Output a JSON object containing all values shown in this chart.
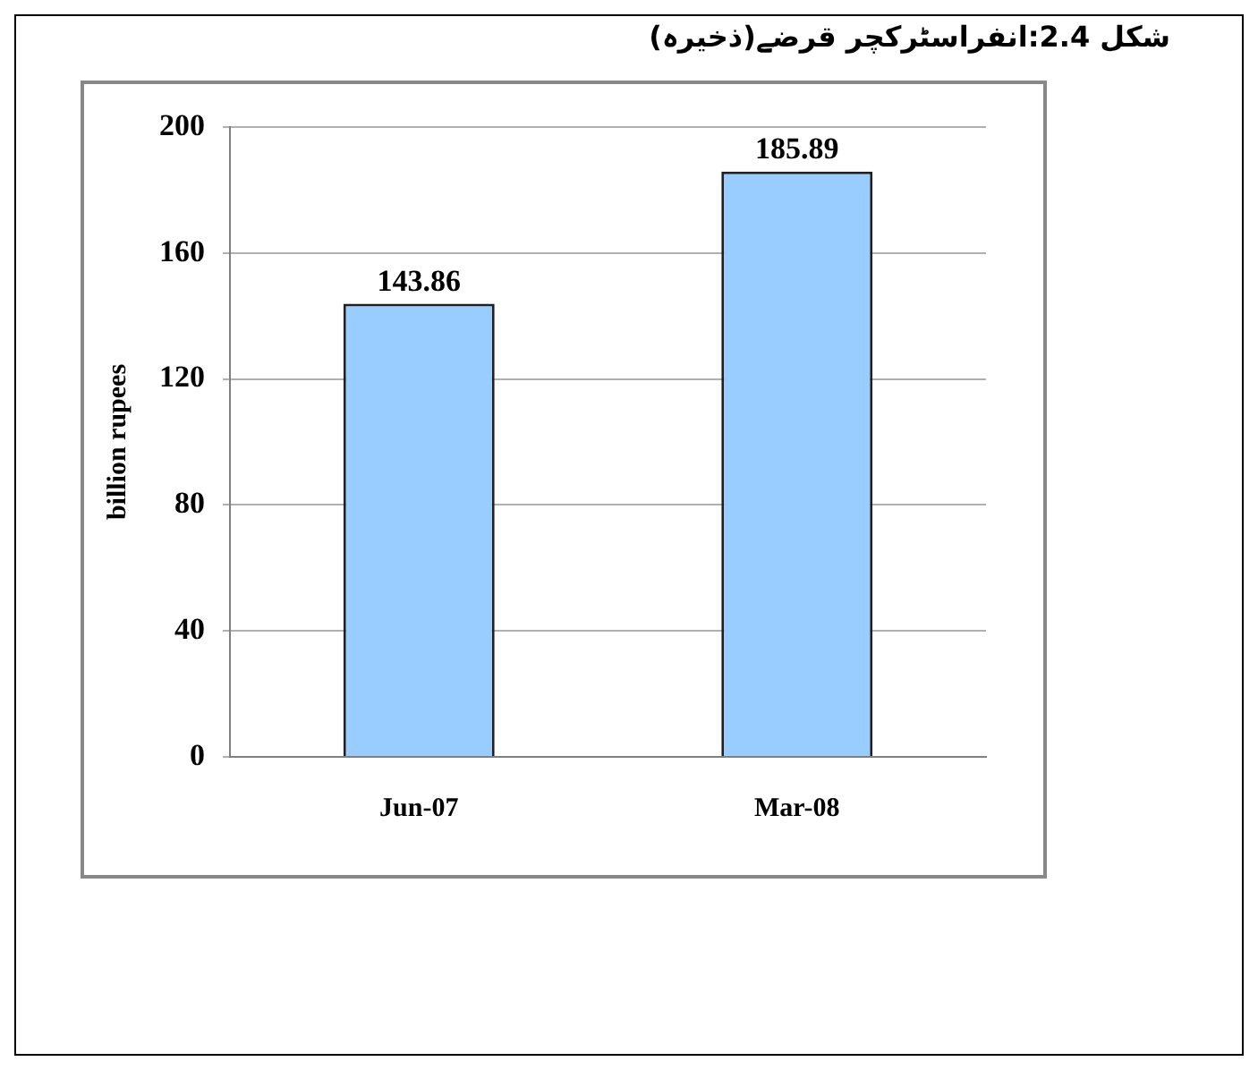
{
  "chart_data": {
    "type": "bar",
    "title": "شکل 2.4:انفراسٹرکچر قرضے(ذخیرہ)",
    "ylabel": "billion rupees",
    "categories": [
      "Jun-07",
      "Mar-08"
    ],
    "values": [
      143.86,
      185.89
    ],
    "color": "#99ccff",
    "ylim": [
      0,
      200
    ],
    "yticks": [
      0,
      40,
      80,
      120,
      160,
      200
    ],
    "grid": "y",
    "data_labels": true,
    "legend": false
  }
}
